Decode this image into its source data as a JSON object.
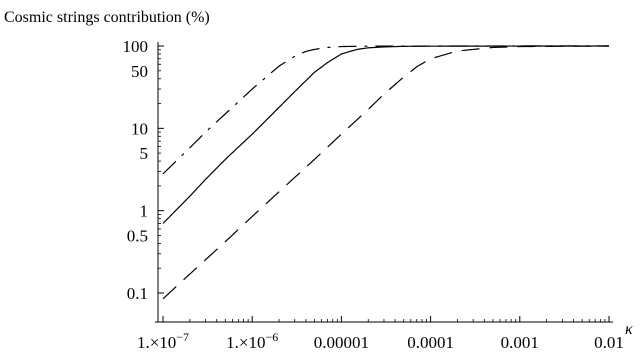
{
  "chart_data": {
    "type": "line",
    "title": "Cosmic strings contribution (%)",
    "xlabel": "κ",
    "ylabel": "Cosmic strings contribution (%)",
    "x_scale": "log",
    "y_scale": "log",
    "xlim": [
      1e-07,
      0.01
    ],
    "ylim": [
      0.08,
      110
    ],
    "grid": false,
    "legend": "none",
    "x_ticks": [
      {
        "value": 1e-07,
        "mantissa": "1.",
        "times": "×",
        "base": "10",
        "exp": "−7"
      },
      {
        "value": 1e-06,
        "mantissa": "1.",
        "times": "×",
        "base": "10",
        "exp": "−6"
      },
      {
        "value": 1e-05,
        "text": "0.00001"
      },
      {
        "value": 0.0001,
        "text": "0.0001"
      },
      {
        "value": 0.001,
        "text": "0.001"
      },
      {
        "value": 0.01,
        "text": "0.01"
      }
    ],
    "y_ticks": [
      {
        "value": 0.1,
        "text": "0.1"
      },
      {
        "value": 0.5,
        "text": "0.5"
      },
      {
        "value": 1,
        "text": "1"
      },
      {
        "value": 5,
        "text": "5"
      },
      {
        "value": 10,
        "text": "10"
      },
      {
        "value": 50,
        "text": "50"
      },
      {
        "value": 100,
        "text": "100"
      }
    ],
    "series": [
      {
        "style": "solid",
        "x": [
          1e-07,
          2e-07,
          3e-07,
          5e-07,
          1e-06,
          2e-06,
          3e-06,
          5e-06,
          7e-06,
          1e-05,
          1.5e-05,
          2e-05,
          3e-05,
          5e-05,
          0.0001,
          0.001,
          0.01
        ],
        "y": [
          0.7,
          1.5,
          2.4,
          4.2,
          8.5,
          18,
          28,
          48,
          63,
          80,
          91,
          95,
          97.5,
          99,
          99.5,
          99.9,
          100
        ]
      },
      {
        "style": "dash-dot",
        "x": [
          1e-07,
          2e-07,
          3e-07,
          5e-07,
          1e-06,
          2e-06,
          3e-06,
          4e-06,
          5e-06,
          7e-06,
          1e-05,
          2e-05,
          0.0001,
          0.001,
          0.01
        ],
        "y": [
          2.8,
          5.8,
          9,
          15,
          30,
          57,
          75,
          86,
          91,
          96,
          98.5,
          99.5,
          99.9,
          100,
          100
        ]
      },
      {
        "style": "dashed",
        "x": [
          1e-07,
          2e-07,
          5e-07,
          1e-06,
          2e-06,
          5e-06,
          1e-05,
          2e-05,
          3e-05,
          5e-05,
          7e-05,
          0.0001,
          0.0002,
          0.0005,
          0.001,
          0.01
        ],
        "y": [
          0.085,
          0.17,
          0.42,
          0.85,
          1.7,
          4.2,
          8.5,
          17,
          26,
          42,
          56,
          70,
          87,
          96,
          98.5,
          100
        ]
      }
    ]
  }
}
